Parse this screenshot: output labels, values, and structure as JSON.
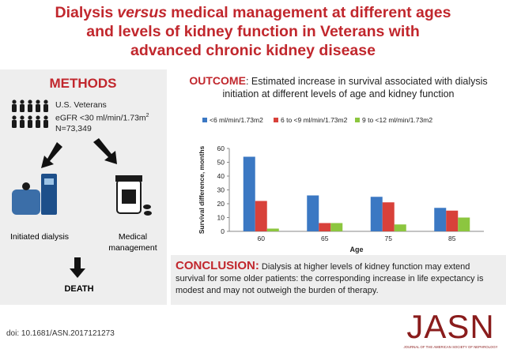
{
  "title": {
    "start": "Dialysis",
    "italic": "versus",
    "line1_rest": "medical management at different ages",
    "line2": "and levels of kidney function in Veterans with",
    "line3": "advanced chronic kidney disease"
  },
  "methods": {
    "heading": "METHODS",
    "cohort": {
      "line1": "U.S. Veterans",
      "egfr": "eGFR <30 ml/min/1.73m",
      "egfr_sup": "2",
      "n": "N=73,349"
    },
    "arm_dialysis": "Initiated dialysis",
    "arm_medical": "Medical management",
    "outcome": "DEATH"
  },
  "outcome": {
    "label": "OUTCOME",
    "text": ": Estimated increase in survival associated with dialysis initiation at different levels of age and kidney function"
  },
  "chart_data": {
    "type": "bar",
    "categories": [
      "60",
      "65",
      "75",
      "85"
    ],
    "series": [
      {
        "name": "<6 ml/min/1.73m2",
        "color": "#3b78c3",
        "values": [
          54,
          26,
          25,
          17
        ]
      },
      {
        "name": "6 to <9 ml/min/1.73m2",
        "color": "#d8413a",
        "values": [
          22,
          6,
          21,
          15
        ]
      },
      {
        "name": "9 to <12 ml/min/1.73m2",
        "color": "#8cc63f",
        "values": [
          2,
          6,
          5,
          10
        ]
      }
    ],
    "xlabel": "Age",
    "ylabel": "Survival difference, months",
    "ylim": [
      0,
      60
    ],
    "yticks": [
      0,
      10,
      20,
      30,
      40,
      50,
      60
    ],
    "grid": false,
    "legend": "top"
  },
  "conclusion": {
    "label": "CONCLUSION:",
    "text": "Dialysis at higher levels of kidney function may extend survival for some older patients: the corresponding increase in life expectancy is modest and may not outweigh the burden of therapy."
  },
  "doi": "doi: 10.1681/ASN.2017121273",
  "journal": {
    "name": "JASN",
    "full": "JOURNAL OF THE AMERICAN SOCIETY OF NEPHROLOGY"
  }
}
